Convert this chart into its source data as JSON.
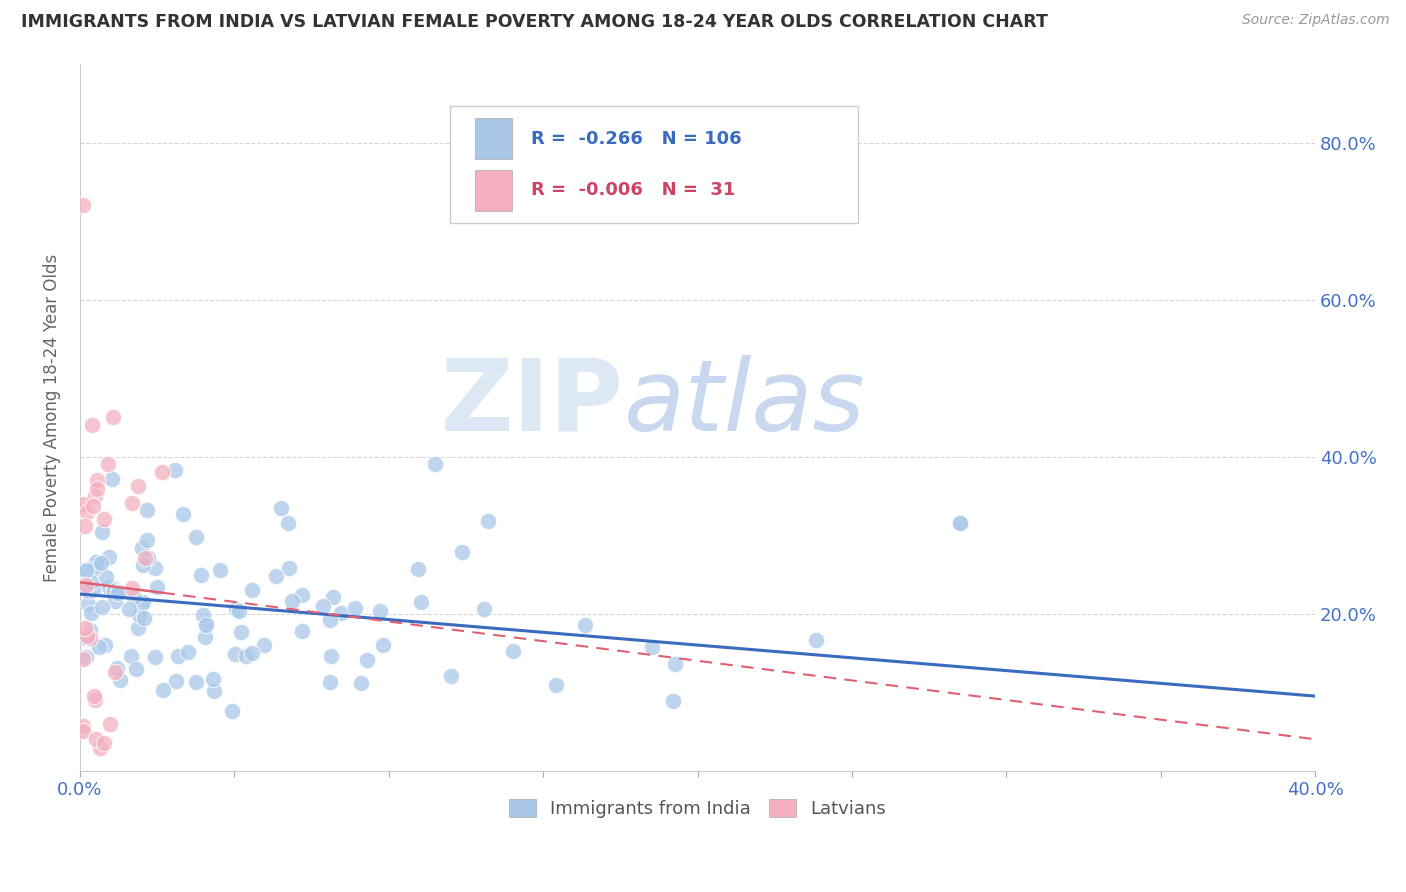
{
  "title": "IMMIGRANTS FROM INDIA VS LATVIAN FEMALE POVERTY AMONG 18-24 YEAR OLDS CORRELATION CHART",
  "source": "Source: ZipAtlas.com",
  "ylabel_left": "Female Poverty Among 18-24 Year Olds",
  "xlim": [
    0.0,
    0.4
  ],
  "ylim": [
    0.0,
    0.9
  ],
  "xtick_positions": [
    0.0,
    0.05,
    0.1,
    0.15,
    0.2,
    0.25,
    0.3,
    0.35,
    0.4
  ],
  "xtick_labels": [
    "0.0%",
    "",
    "",
    "",
    "",
    "",
    "",
    "",
    "40.0%"
  ],
  "ytick_positions": [
    0.2,
    0.4,
    0.6,
    0.8
  ],
  "ytick_labels_right": [
    "20.0%",
    "40.0%",
    "60.0%",
    "80.0%"
  ],
  "grid_color": "#cccccc",
  "background_color": "#ffffff",
  "blue_color": "#a9c8e8",
  "pink_color": "#f4b0c0",
  "blue_line_color": "#3a6bbf",
  "pink_line_color": "#e06070",
  "legend_R1": "-0.266",
  "legend_N1": "106",
  "legend_R2": "-0.006",
  "legend_N2": "31",
  "legend_label1": "Immigrants from India",
  "legend_label2": "Latvians",
  "blue_line_start_y": 0.225,
  "blue_line_end_y": 0.095,
  "pink_line_y": 0.24,
  "pink_line_slope": -0.5
}
